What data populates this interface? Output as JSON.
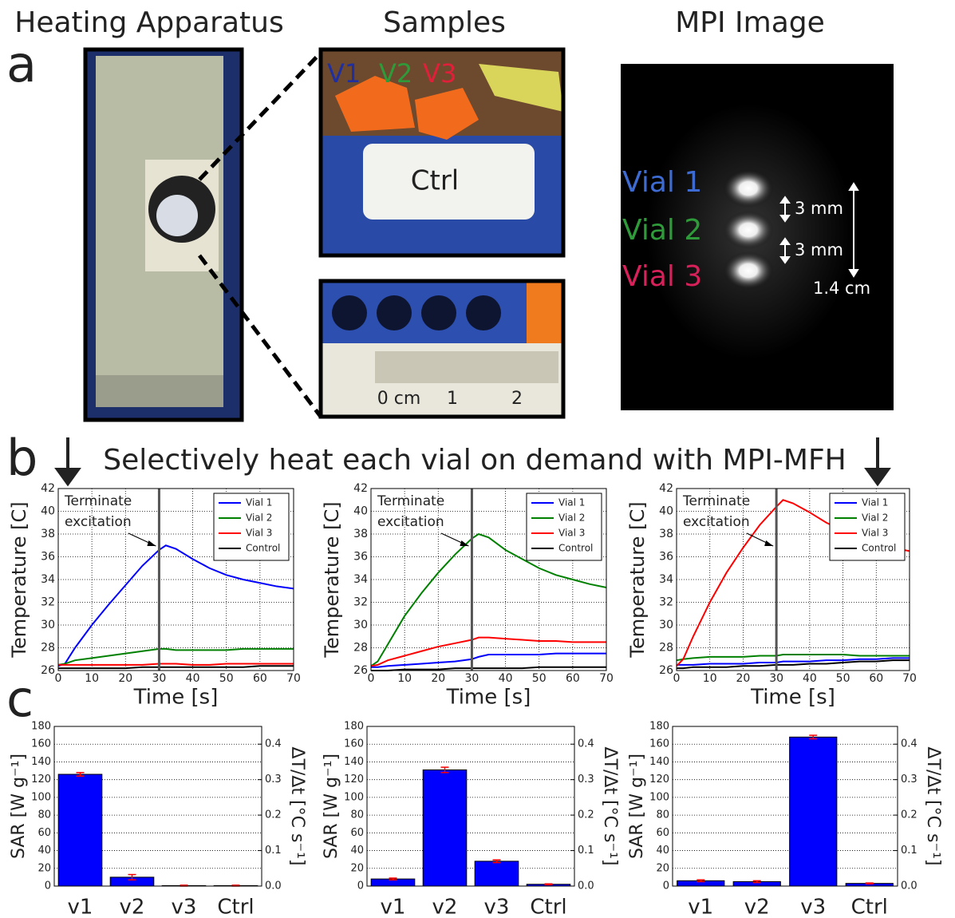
{
  "figure": {
    "headers": [
      "Heating Apparatus",
      "Samples",
      "MPI Image"
    ],
    "panel_labels": [
      "a",
      "b",
      "c"
    ],
    "banner": "Selectively heat each vial on demand with MPI-MFH",
    "sample_labels": [
      "V1",
      "V2",
      "V3"
    ],
    "ctrl_label": "Ctrl",
    "ruler_labels": [
      "0 cm",
      "1",
      "2"
    ],
    "mpi_labels": [
      "Vial 1",
      "Vial 2",
      "Vial 3"
    ],
    "spacing_labels": [
      "3 mm",
      "3 mm"
    ],
    "fov_label": "1.4 cm"
  },
  "chart_data": [
    {
      "type": "line",
      "xlabel": "Time [s]",
      "ylabel": "Temperature [C]",
      "annotation": [
        "Terminate",
        "excitation"
      ],
      "vline": 30,
      "legend": "upper right",
      "grid": true,
      "x": [
        0,
        2,
        5,
        10,
        15,
        20,
        25,
        30,
        32,
        35,
        40,
        45,
        50,
        55,
        60,
        65,
        70
      ],
      "series": [
        {
          "name": "Vial 1",
          "color": "#0000ff",
          "values": [
            26.4,
            26.6,
            28.0,
            30.0,
            31.8,
            33.5,
            35.2,
            36.6,
            37.0,
            36.7,
            35.8,
            35.0,
            34.4,
            34.0,
            33.7,
            33.4,
            33.2
          ]
        },
        {
          "name": "Vial 2",
          "color": "#008000",
          "values": [
            26.5,
            26.6,
            26.9,
            27.1,
            27.3,
            27.5,
            27.7,
            27.9,
            27.9,
            27.8,
            27.8,
            27.8,
            27.8,
            27.9,
            27.9,
            27.9,
            27.9
          ]
        },
        {
          "name": "Vial 3",
          "color": "#ff0000",
          "values": [
            26.5,
            26.5,
            26.5,
            26.5,
            26.5,
            26.5,
            26.5,
            26.6,
            26.6,
            26.6,
            26.5,
            26.5,
            26.6,
            26.6,
            26.6,
            26.6,
            26.6
          ]
        },
        {
          "name": "Control",
          "color": "#000000",
          "values": [
            26.2,
            26.2,
            26.2,
            26.2,
            26.2,
            26.2,
            26.3,
            26.3,
            26.3,
            26.3,
            26.3,
            26.3,
            26.3,
            26.3,
            26.4,
            26.4,
            26.4
          ]
        }
      ],
      "xlim": [
        0,
        70
      ],
      "ylim": [
        26,
        42
      ],
      "xticks": [
        0,
        10,
        20,
        30,
        40,
        50,
        60,
        70
      ],
      "yticks": [
        26,
        28,
        30,
        32,
        34,
        36,
        38,
        40,
        42
      ]
    },
    {
      "type": "line",
      "xlabel": "Time [s]",
      "ylabel": "Temperature [C]",
      "annotation": [
        "Terminate",
        "excitation"
      ],
      "vline": 30,
      "legend": "upper right",
      "grid": true,
      "x": [
        0,
        2,
        5,
        10,
        15,
        20,
        25,
        30,
        32,
        35,
        40,
        45,
        50,
        55,
        60,
        65,
        70
      ],
      "series": [
        {
          "name": "Vial 1",
          "color": "#0000ff",
          "values": [
            26.3,
            26.3,
            26.4,
            26.5,
            26.6,
            26.7,
            26.8,
            27.0,
            27.2,
            27.4,
            27.4,
            27.4,
            27.4,
            27.5,
            27.5,
            27.5,
            27.5
          ]
        },
        {
          "name": "Vial 2",
          "color": "#008000",
          "values": [
            26.4,
            26.8,
            28.3,
            30.8,
            32.8,
            34.6,
            36.2,
            37.6,
            38.0,
            37.7,
            36.6,
            35.8,
            35.0,
            34.4,
            34.0,
            33.6,
            33.3
          ]
        },
        {
          "name": "Vial 3",
          "color": "#ff0000",
          "values": [
            26.4,
            26.5,
            26.9,
            27.3,
            27.7,
            28.1,
            28.4,
            28.7,
            28.9,
            28.9,
            28.8,
            28.7,
            28.6,
            28.6,
            28.5,
            28.5,
            28.5
          ]
        },
        {
          "name": "Control",
          "color": "#000000",
          "values": [
            26.0,
            26.0,
            26.0,
            26.1,
            26.1,
            26.1,
            26.2,
            26.2,
            26.2,
            26.2,
            26.2,
            26.2,
            26.3,
            26.3,
            26.3,
            26.3,
            26.3
          ]
        }
      ],
      "xlim": [
        0,
        70
      ],
      "ylim": [
        26,
        42
      ],
      "xticks": [
        0,
        10,
        20,
        30,
        40,
        50,
        60,
        70
      ],
      "yticks": [
        26,
        28,
        30,
        32,
        34,
        36,
        38,
        40,
        42
      ]
    },
    {
      "type": "line",
      "xlabel": "Time [s]",
      "ylabel": "Temperature [C]",
      "annotation": [
        "Terminate",
        "excitation"
      ],
      "vline": 30,
      "legend": "upper right",
      "grid": true,
      "x": [
        0,
        2,
        5,
        10,
        15,
        20,
        25,
        30,
        32,
        35,
        40,
        45,
        50,
        55,
        60,
        65,
        70
      ],
      "series": [
        {
          "name": "Vial 1",
          "color": "#0000ff",
          "values": [
            26.5,
            26.5,
            26.5,
            26.6,
            26.6,
            26.6,
            26.7,
            26.7,
            26.8,
            26.8,
            26.8,
            26.9,
            26.9,
            27.0,
            27.0,
            27.1,
            27.1
          ]
        },
        {
          "name": "Vial 2",
          "color": "#008000",
          "values": [
            26.9,
            27.0,
            27.1,
            27.2,
            27.2,
            27.2,
            27.3,
            27.3,
            27.4,
            27.4,
            27.4,
            27.4,
            27.4,
            27.3,
            27.3,
            27.3,
            27.3
          ]
        },
        {
          "name": "Vial 3",
          "color": "#ff0000",
          "values": [
            26.4,
            27.0,
            29.0,
            32.0,
            34.6,
            36.8,
            38.8,
            40.4,
            41.0,
            40.7,
            39.9,
            39.0,
            38.3,
            37.7,
            37.2,
            36.8,
            36.5
          ]
        },
        {
          "name": "Control",
          "color": "#000000",
          "values": [
            26.2,
            26.2,
            26.3,
            26.3,
            26.3,
            26.4,
            26.4,
            26.5,
            26.5,
            26.5,
            26.6,
            26.6,
            26.7,
            26.8,
            26.8,
            26.9,
            26.9
          ]
        }
      ],
      "xlim": [
        0,
        70
      ],
      "ylim": [
        26,
        42
      ],
      "xticks": [
        0,
        10,
        20,
        30,
        40,
        50,
        60,
        70
      ],
      "yticks": [
        26,
        28,
        30,
        32,
        34,
        36,
        38,
        40,
        42
      ]
    },
    {
      "type": "bar",
      "ylabel": "SAR [W g⁻¹]",
      "y2label": "ΔT/Δt [°C s⁻¹]",
      "grid": true,
      "categories": [
        "v1",
        "v2",
        "v3",
        "Ctrl"
      ],
      "values": [
        126,
        10,
        0.5,
        0.5
      ],
      "errors": [
        2,
        3,
        0.5,
        0.5
      ],
      "color": "#0000ff",
      "error_color": "#ff0000",
      "ylim": [
        0,
        180
      ],
      "yticks": [
        0,
        20,
        40,
        60,
        80,
        100,
        120,
        140,
        160,
        180
      ],
      "y2lim": [
        0,
        0.45
      ],
      "y2ticks": [
        {
          "value": 0,
          "label": "0.0"
        },
        0.1,
        0.2,
        0.3,
        0.4
      ]
    },
    {
      "type": "bar",
      "ylabel": "SAR [W g⁻¹]",
      "y2label": "ΔT/Δt [°C s⁻¹]",
      "grid": true,
      "categories": [
        "v1",
        "v2",
        "v3",
        "Ctrl"
      ],
      "values": [
        8,
        131,
        28,
        2
      ],
      "errors": [
        1,
        3,
        1.5,
        0.5
      ],
      "color": "#0000ff",
      "error_color": "#ff0000",
      "ylim": [
        0,
        180
      ],
      "yticks": [
        0,
        20,
        40,
        60,
        80,
        100,
        120,
        140,
        160,
        180
      ],
      "y2lim": [
        0,
        0.45
      ],
      "y2ticks": [
        {
          "value": 0,
          "label": "0.0"
        },
        0.1,
        0.2,
        0.3,
        0.4
      ]
    },
    {
      "type": "bar",
      "ylabel": "SAR [W g⁻¹]",
      "y2label": "ΔT/Δt [°C s⁻¹]",
      "grid": true,
      "categories": [
        "v1",
        "v2",
        "v3",
        "Ctrl"
      ],
      "values": [
        6,
        5,
        168,
        3
      ],
      "errors": [
        1,
        1,
        2,
        0.5
      ],
      "color": "#0000ff",
      "error_color": "#ff0000",
      "ylim": [
        0,
        180
      ],
      "yticks": [
        0,
        20,
        40,
        60,
        80,
        100,
        120,
        140,
        160,
        180
      ],
      "y2lim": [
        0,
        0.45
      ],
      "y2ticks": [
        {
          "value": 0,
          "label": "0.0"
        },
        0.1,
        0.2,
        0.3,
        0.4
      ]
    }
  ]
}
